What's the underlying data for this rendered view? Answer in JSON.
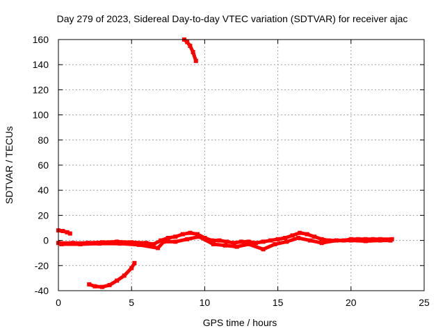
{
  "chart_data": {
    "type": "scatter",
    "title": "Day 279 of 2023, Sidereal Day-to-day VTEC variation (SDTVAR) for receiver ajac",
    "xlabel": "GPS time / hours",
    "ylabel": "SDTVAR / TECUs",
    "xlim": [
      0,
      25
    ],
    "ylim": [
      -40,
      160
    ],
    "xticks": [
      0,
      5,
      10,
      15,
      20,
      25
    ],
    "yticks": [
      -40,
      -20,
      0,
      20,
      40,
      60,
      80,
      100,
      120,
      140,
      160
    ],
    "grid": true,
    "color": "#ff0000",
    "series": [
      {
        "name": "main-band-a",
        "values": [
          [
            0,
            -2
          ],
          [
            1,
            -2
          ],
          [
            2,
            -2
          ],
          [
            3,
            -1.5
          ],
          [
            4,
            -1
          ],
          [
            5,
            -1.5
          ],
          [
            6,
            -2
          ],
          [
            6.5,
            -3
          ],
          [
            7,
            0
          ],
          [
            7.5,
            2
          ],
          [
            8,
            3
          ],
          [
            8.5,
            5
          ],
          [
            9,
            6
          ],
          [
            9.5,
            5
          ],
          [
            10,
            2
          ],
          [
            10.5,
            0
          ],
          [
            11,
            0
          ],
          [
            11.5,
            -1
          ],
          [
            12,
            -2
          ],
          [
            12.5,
            -1
          ],
          [
            13,
            -1
          ],
          [
            13.5,
            -2
          ],
          [
            14,
            -1
          ],
          [
            14.5,
            0
          ],
          [
            15,
            1
          ],
          [
            15.5,
            2
          ],
          [
            16,
            4
          ],
          [
            16.5,
            6
          ],
          [
            17,
            5
          ],
          [
            17.5,
            3
          ],
          [
            18,
            1
          ],
          [
            18.5,
            0
          ],
          [
            19,
            0
          ],
          [
            19.5,
            0
          ],
          [
            20,
            1
          ],
          [
            20.5,
            1
          ],
          [
            21,
            1
          ],
          [
            21.5,
            1
          ],
          [
            22,
            1
          ],
          [
            22.8,
            1
          ]
        ]
      },
      {
        "name": "main-band-b",
        "values": [
          [
            0.2,
            -3
          ],
          [
            1.5,
            -3
          ],
          [
            2.8,
            -2.5
          ],
          [
            4.2,
            -2.5
          ],
          [
            5.5,
            -3.5
          ],
          [
            6.8,
            -6
          ],
          [
            7.2,
            -1
          ],
          [
            8,
            -1
          ],
          [
            8.8,
            1
          ],
          [
            9.6,
            3
          ],
          [
            10.6,
            -3
          ],
          [
            11.4,
            -4
          ],
          [
            12.2,
            -5
          ],
          [
            13,
            -3
          ],
          [
            14,
            -7
          ],
          [
            14.8,
            -3
          ],
          [
            15.6,
            -1
          ],
          [
            16.4,
            2
          ],
          [
            17.2,
            0
          ],
          [
            18,
            -2
          ],
          [
            19,
            0
          ],
          [
            20,
            0
          ],
          [
            21,
            -0.5
          ],
          [
            22,
            0
          ],
          [
            22.7,
            0
          ]
        ]
      },
      {
        "name": "segment-early-high",
        "values": [
          [
            0,
            8
          ],
          [
            0.3,
            7.5
          ],
          [
            0.6,
            6.5
          ],
          [
            0.8,
            5.5
          ]
        ]
      },
      {
        "name": "segment-low-arc",
        "values": [
          [
            2.1,
            -35
          ],
          [
            2.5,
            -36.5
          ],
          [
            3,
            -37
          ],
          [
            3.5,
            -35.5
          ],
          [
            4,
            -32
          ],
          [
            4.5,
            -28
          ],
          [
            5,
            -22
          ],
          [
            5.2,
            -18
          ]
        ]
      },
      {
        "name": "segment-high",
        "values": [
          [
            8.6,
            160
          ],
          [
            8.8,
            158
          ],
          [
            9,
            155
          ],
          [
            9.2,
            150
          ],
          [
            9.4,
            143
          ]
        ]
      }
    ]
  }
}
